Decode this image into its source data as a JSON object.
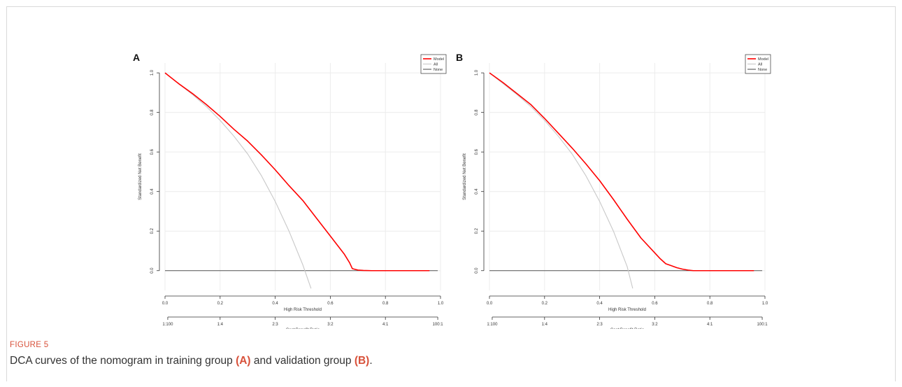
{
  "figure": {
    "label": "FIGURE 5",
    "caption_parts": [
      "DCA curves of the nomogram in training group ",
      "(A)",
      " and validation group ",
      "(B)",
      "."
    ]
  },
  "colors": {
    "model": "#ff0000",
    "all": "#c8c8c8",
    "none": "#555555",
    "grid": "#ececec",
    "label_accent": "#d8513a"
  },
  "chart_data": [
    {
      "panel": "A",
      "type": "line",
      "xlabel": "High Risk Threshold",
      "ylabel": "Standardized Net Benefit",
      "x2label": "Cost:Benefit Ratio",
      "xlim": [
        0,
        1
      ],
      "ylim": [
        -0.1,
        1.05
      ],
      "x_ticks": [
        "0.0",
        "0.2",
        "0.4",
        "0.6",
        "0.8",
        "1.0"
      ],
      "y_ticks": [
        "0.0",
        "0.2",
        "0.4",
        "0.6",
        "0.8",
        "1.0"
      ],
      "x2_ticks": [
        {
          "pos": 0.01,
          "label": "1:100"
        },
        {
          "pos": 0.2,
          "label": "1:4"
        },
        {
          "pos": 0.4,
          "label": "2:3"
        },
        {
          "pos": 0.6,
          "label": "3:2"
        },
        {
          "pos": 0.8,
          "label": "4:1"
        },
        {
          "pos": 0.99,
          "label": "100:1"
        }
      ],
      "grid": true,
      "legend_position": "top-right",
      "series": [
        {
          "name": "Model",
          "x": [
            0,
            0.05,
            0.1,
            0.15,
            0.2,
            0.25,
            0.3,
            0.35,
            0.4,
            0.45,
            0.5,
            0.55,
            0.6,
            0.65,
            0.67,
            0.68,
            0.7,
            0.72,
            0.75,
            0.8,
            0.9,
            0.96
          ],
          "y": [
            1.0,
            0.945,
            0.895,
            0.84,
            0.78,
            0.715,
            0.655,
            0.585,
            0.51,
            0.43,
            0.355,
            0.265,
            0.175,
            0.085,
            0.04,
            0.01,
            0.003,
            0.001,
            0.0,
            0.0,
            0.0,
            0.0
          ]
        },
        {
          "name": "All",
          "x": [
            0,
            0.05,
            0.1,
            0.15,
            0.2,
            0.25,
            0.3,
            0.35,
            0.4,
            0.45,
            0.5,
            0.53
          ],
          "y": [
            1.0,
            0.945,
            0.89,
            0.83,
            0.76,
            0.68,
            0.59,
            0.48,
            0.35,
            0.2,
            0.03,
            -0.09
          ]
        },
        {
          "name": "None",
          "x": [
            0,
            0.99
          ],
          "y": [
            0,
            0
          ]
        }
      ]
    },
    {
      "panel": "B",
      "type": "line",
      "xlabel": "High Risk Threshold",
      "ylabel": "Standardized Net Benefit",
      "x2label": "Cost:Benefit Ratio",
      "xlim": [
        0,
        1
      ],
      "ylim": [
        -0.1,
        1.05
      ],
      "x_ticks": [
        "0.0",
        "0.2",
        "0.4",
        "0.6",
        "0.8",
        "1.0"
      ],
      "y_ticks": [
        "0.0",
        "0.2",
        "0.4",
        "0.6",
        "0.8",
        "1.0"
      ],
      "x2_ticks": [
        {
          "pos": 0.01,
          "label": "1:100"
        },
        {
          "pos": 0.2,
          "label": "1:4"
        },
        {
          "pos": 0.4,
          "label": "2:3"
        },
        {
          "pos": 0.6,
          "label": "3:2"
        },
        {
          "pos": 0.8,
          "label": "4:1"
        },
        {
          "pos": 0.99,
          "label": "100:1"
        }
      ],
      "grid": true,
      "legend_position": "top-right",
      "series": [
        {
          "name": "Model",
          "x": [
            0,
            0.05,
            0.1,
            0.15,
            0.2,
            0.25,
            0.3,
            0.35,
            0.4,
            0.45,
            0.5,
            0.55,
            0.6,
            0.62,
            0.64,
            0.66,
            0.68,
            0.7,
            0.72,
            0.74,
            0.8,
            0.9,
            0.96
          ],
          "y": [
            1.0,
            0.95,
            0.895,
            0.84,
            0.77,
            0.695,
            0.62,
            0.54,
            0.455,
            0.36,
            0.26,
            0.165,
            0.09,
            0.06,
            0.035,
            0.025,
            0.015,
            0.008,
            0.003,
            0.0,
            0.0,
            0.0,
            0.0
          ]
        },
        {
          "name": "All",
          "x": [
            0,
            0.05,
            0.1,
            0.15,
            0.2,
            0.25,
            0.3,
            0.35,
            0.4,
            0.45,
            0.5,
            0.52
          ],
          "y": [
            1.0,
            0.945,
            0.89,
            0.83,
            0.76,
            0.68,
            0.59,
            0.48,
            0.35,
            0.2,
            0.02,
            -0.09
          ]
        },
        {
          "name": "None",
          "x": [
            0,
            0.99
          ],
          "y": [
            0,
            0
          ]
        }
      ]
    }
  ]
}
